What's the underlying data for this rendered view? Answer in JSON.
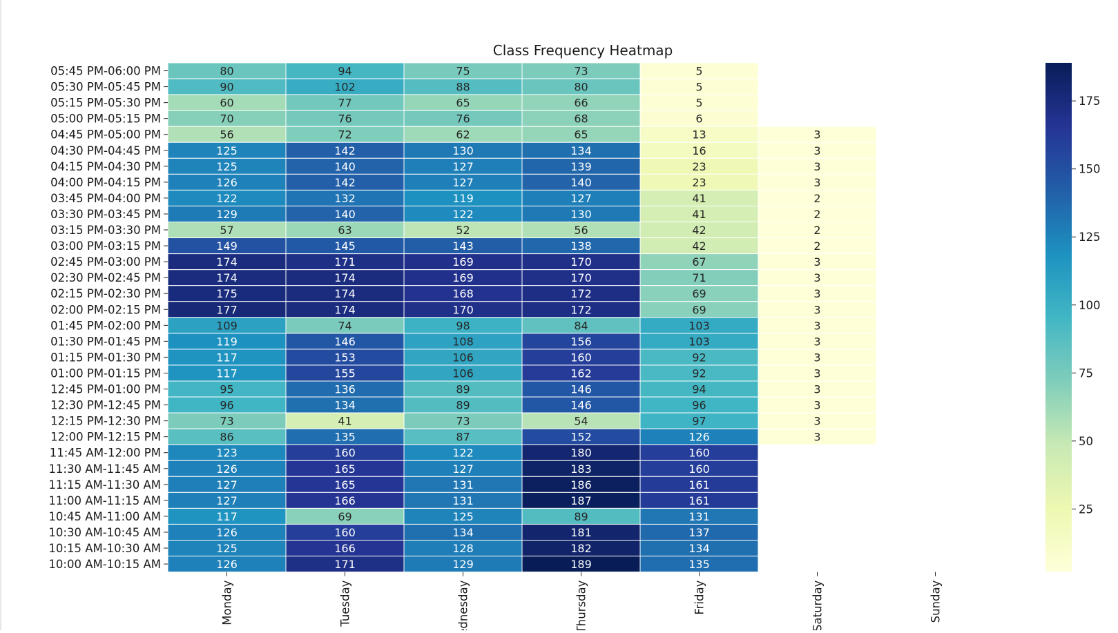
{
  "chart_data": {
    "type": "heatmap",
    "title": "Class Frequency Heatmap",
    "xlabel": "",
    "ylabel": "",
    "colormap": "YlGnBu",
    "vmin": 2,
    "vmax": 189,
    "colorbar_ticks": [
      25,
      50,
      75,
      100,
      125,
      150,
      175
    ],
    "grid_line_color": "#ffffff",
    "columns": [
      "Monday",
      "Tuesday",
      "Wednesday",
      "Thursday",
      "Friday",
      "Saturday",
      "Sunday"
    ],
    "rows": [
      "05:45 PM-06:00 PM",
      "05:30 PM-05:45 PM",
      "05:15 PM-05:30 PM",
      "05:00 PM-05:15 PM",
      "04:45 PM-05:00 PM",
      "04:30 PM-04:45 PM",
      "04:15 PM-04:30 PM",
      "04:00 PM-04:15 PM",
      "03:45 PM-04:00 PM",
      "03:30 PM-03:45 PM",
      "03:15 PM-03:30 PM",
      "03:00 PM-03:15 PM",
      "02:45 PM-03:00 PM",
      "02:30 PM-02:45 PM",
      "02:15 PM-02:30 PM",
      "02:00 PM-02:15 PM",
      "01:45 PM-02:00 PM",
      "01:30 PM-01:45 PM",
      "01:15 PM-01:30 PM",
      "01:00 PM-01:15 PM",
      "12:45 PM-01:00 PM",
      "12:30 PM-12:45 PM",
      "12:15 PM-12:30 PM",
      "12:00 PM-12:15 PM",
      "11:45 AM-12:00 PM",
      "11:30 AM-11:45 AM",
      "11:15 AM-11:30 AM",
      "11:00 AM-11:15 AM",
      "10:45 AM-11:00 AM",
      "10:30 AM-10:45 AM",
      "10:15 AM-10:30 AM",
      "10:00 AM-10:15 AM"
    ],
    "values": [
      [
        80,
        94,
        75,
        73,
        5,
        null,
        null
      ],
      [
        90,
        102,
        88,
        80,
        5,
        null,
        null
      ],
      [
        60,
        77,
        65,
        66,
        5,
        null,
        null
      ],
      [
        70,
        76,
        76,
        68,
        6,
        null,
        null
      ],
      [
        56,
        72,
        62,
        65,
        13,
        3,
        null
      ],
      [
        125,
        142,
        130,
        134,
        16,
        3,
        null
      ],
      [
        125,
        140,
        127,
        139,
        23,
        3,
        null
      ],
      [
        126,
        142,
        127,
        140,
        23,
        3,
        null
      ],
      [
        122,
        132,
        119,
        127,
        41,
        2,
        null
      ],
      [
        129,
        140,
        122,
        130,
        41,
        2,
        null
      ],
      [
        57,
        63,
        52,
        56,
        42,
        2,
        null
      ],
      [
        149,
        145,
        143,
        138,
        42,
        2,
        null
      ],
      [
        174,
        171,
        169,
        170,
        67,
        3,
        null
      ],
      [
        174,
        174,
        169,
        170,
        71,
        3,
        null
      ],
      [
        175,
        174,
        168,
        172,
        69,
        3,
        null
      ],
      [
        177,
        174,
        170,
        172,
        69,
        3,
        null
      ],
      [
        109,
        74,
        98,
        84,
        103,
        3,
        null
      ],
      [
        119,
        146,
        108,
        156,
        103,
        3,
        null
      ],
      [
        117,
        153,
        106,
        160,
        92,
        3,
        null
      ],
      [
        117,
        155,
        106,
        162,
        92,
        3,
        null
      ],
      [
        95,
        136,
        89,
        146,
        94,
        3,
        null
      ],
      [
        96,
        134,
        89,
        146,
        96,
        3,
        null
      ],
      [
        73,
        41,
        73,
        54,
        97,
        3,
        null
      ],
      [
        86,
        135,
        87,
        152,
        126,
        3,
        null
      ],
      [
        123,
        160,
        122,
        180,
        160,
        null,
        null
      ],
      [
        126,
        165,
        127,
        183,
        160,
        null,
        null
      ],
      [
        127,
        165,
        131,
        186,
        161,
        null,
        null
      ],
      [
        127,
        166,
        131,
        187,
        161,
        null,
        null
      ],
      [
        117,
        69,
        125,
        89,
        131,
        null,
        null
      ],
      [
        126,
        160,
        134,
        181,
        137,
        null,
        null
      ],
      [
        125,
        166,
        128,
        182,
        134,
        null,
        null
      ],
      [
        126,
        171,
        129,
        189,
        135,
        null,
        null
      ]
    ]
  }
}
